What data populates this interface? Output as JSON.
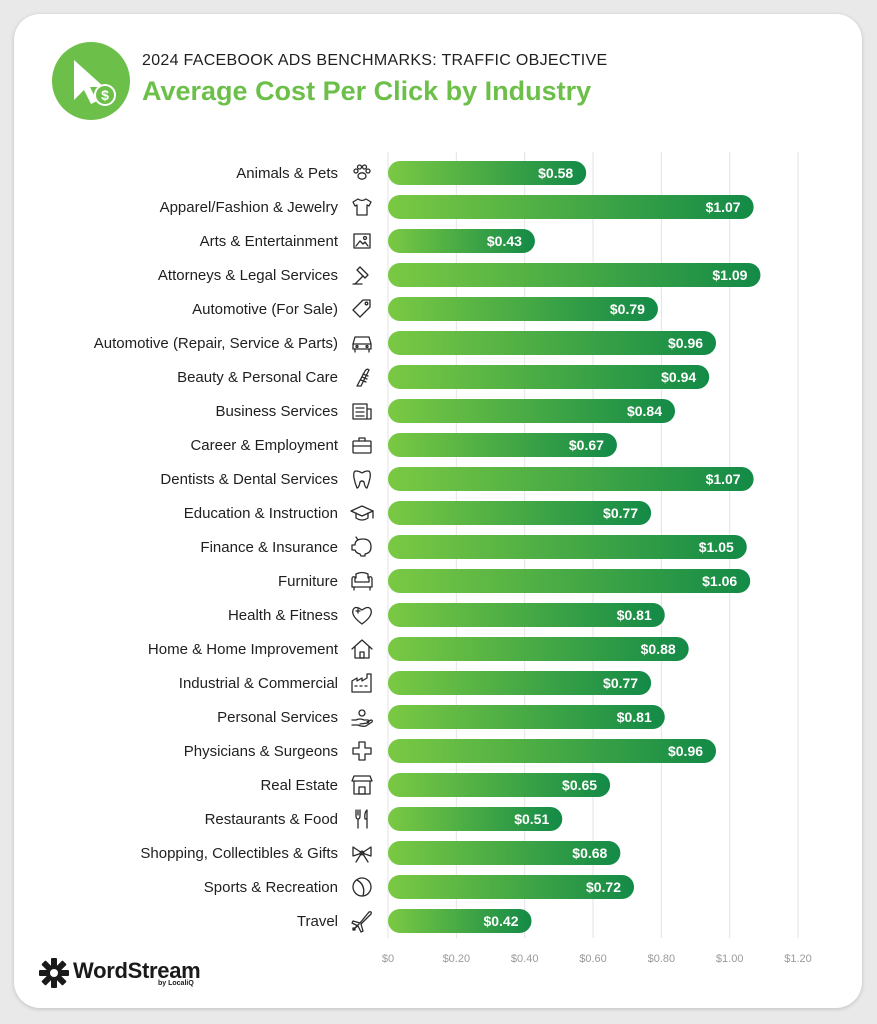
{
  "header": {
    "subtitle": "2024 FACEBOOK ADS BENCHMARKS: TRAFFIC OBJECTIVE",
    "title": "Average Cost Per Click by Industry"
  },
  "colors": {
    "accent": "#6cc04a",
    "bar_start": "#7ac943",
    "bar_end": "#138a47",
    "bar_label": "#ffffff",
    "gridline": "#e3e3e3",
    "tick_text": "#9a9a9a",
    "category_text": "#1f1f1f"
  },
  "brand": {
    "name": "WordStream",
    "sub": "by LocaliQ"
  },
  "chart_data": {
    "type": "bar",
    "orientation": "horizontal",
    "title": "Average Cost Per Click by Industry",
    "xlim": [
      0,
      1.2
    ],
    "xticks": [
      0,
      0.2,
      0.4,
      0.6,
      0.8,
      1.0,
      1.2
    ],
    "xtick_labels": [
      "$0",
      "$0.20",
      "$0.40",
      "$0.60",
      "$0.80",
      "$1.00",
      "$1.20"
    ],
    "grid": "vertical",
    "categories": [
      "Animals & Pets",
      "Apparel/Fashion & Jewelry",
      "Arts & Entertainment",
      "Attorneys & Legal Services",
      "Automotive (For Sale)",
      "Automotive (Repair, Service & Parts)",
      "Beauty & Personal Care",
      "Business Services",
      "Career & Employment",
      "Dentists & Dental Services",
      "Education & Instruction",
      "Finance & Insurance",
      "Furniture",
      "Health & Fitness",
      "Home & Home Improvement",
      "Industrial & Commercial",
      "Personal Services",
      "Physicians & Surgeons",
      "Real Estate",
      "Restaurants & Food",
      "Shopping, Collectibles & Gifts",
      "Sports & Recreation",
      "Travel"
    ],
    "values": [
      0.58,
      1.07,
      0.43,
      1.09,
      0.79,
      0.96,
      0.94,
      0.84,
      0.67,
      1.07,
      0.77,
      1.05,
      1.06,
      0.81,
      0.88,
      0.77,
      0.81,
      0.96,
      0.65,
      0.51,
      0.68,
      0.72,
      0.42
    ],
    "value_labels": [
      "$0.58",
      "$1.07",
      "$0.43",
      "$1.09",
      "$0.79",
      "$0.96",
      "$0.94",
      "$0.84",
      "$0.67",
      "$1.07",
      "$0.77",
      "$1.05",
      "$1.06",
      "$0.81",
      "$0.88",
      "$0.77",
      "$0.81",
      "$0.96",
      "$0.65",
      "$0.51",
      "$0.68",
      "$0.72",
      "$0.42"
    ],
    "icons": [
      "paw-icon",
      "tshirt-icon",
      "picture-icon",
      "gavel-icon",
      "price-tag-icon",
      "car-icon",
      "comb-icon",
      "newspaper-icon",
      "briefcase-icon",
      "tooth-icon",
      "graduation-cap-icon",
      "piggy-bank-icon",
      "armchair-icon",
      "heart-icon",
      "house-icon",
      "factory-icon",
      "hand-icon",
      "medical-cross-icon",
      "storefront-icon",
      "fork-knife-icon",
      "gift-bow-icon",
      "ball-icon",
      "airplane-icon"
    ]
  }
}
